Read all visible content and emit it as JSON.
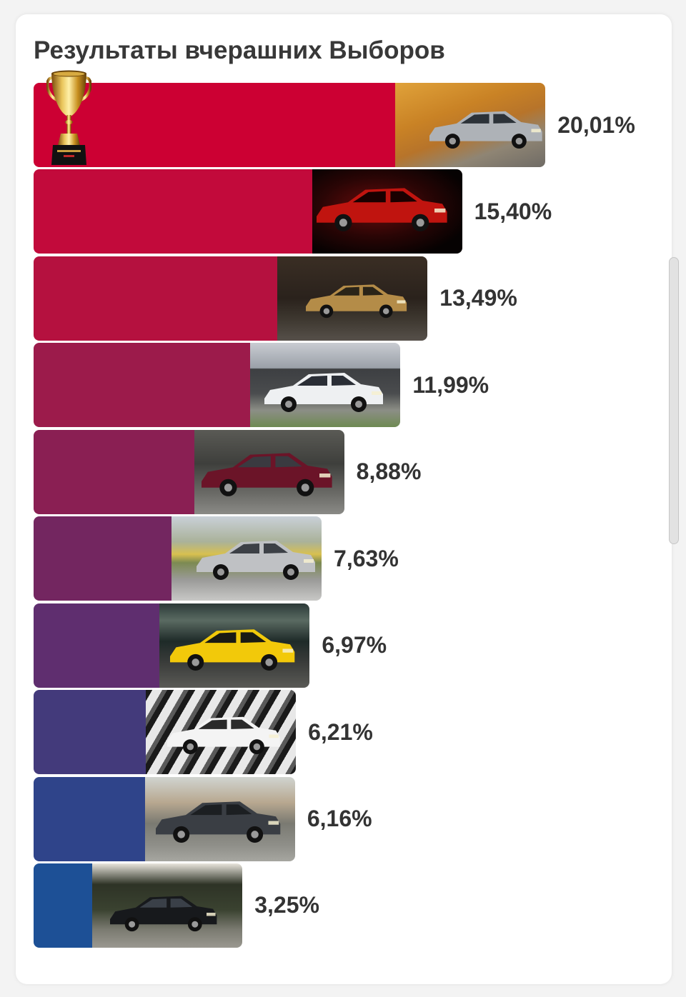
{
  "chart_data": {
    "type": "bar",
    "orientation": "horizontal",
    "title": "Результаты вчерашних Выборов",
    "values": [
      20.01,
      15.4,
      13.49,
      11.99,
      8.88,
      7.63,
      6.97,
      6.21,
      6.16,
      3.25
    ],
    "value_labels": [
      "20,01%",
      "15,40%",
      "13,49%",
      "11,99%",
      "8,88%",
      "7,63%",
      "6,97%",
      "6,21%",
      "6,16%",
      "3,25%"
    ],
    "bar_colors": [
      "#cc0033",
      "#c20a3b",
      "#b5113f",
      "#9c1b4b",
      "#8a1f53",
      "#732660",
      "#5f2e6f",
      "#433a7b",
      "#2f448a",
      "#1d5096"
    ],
    "grid": false,
    "legend": "none"
  },
  "winner_icon": "trophy-icon",
  "item_image_icon": "car-photo"
}
